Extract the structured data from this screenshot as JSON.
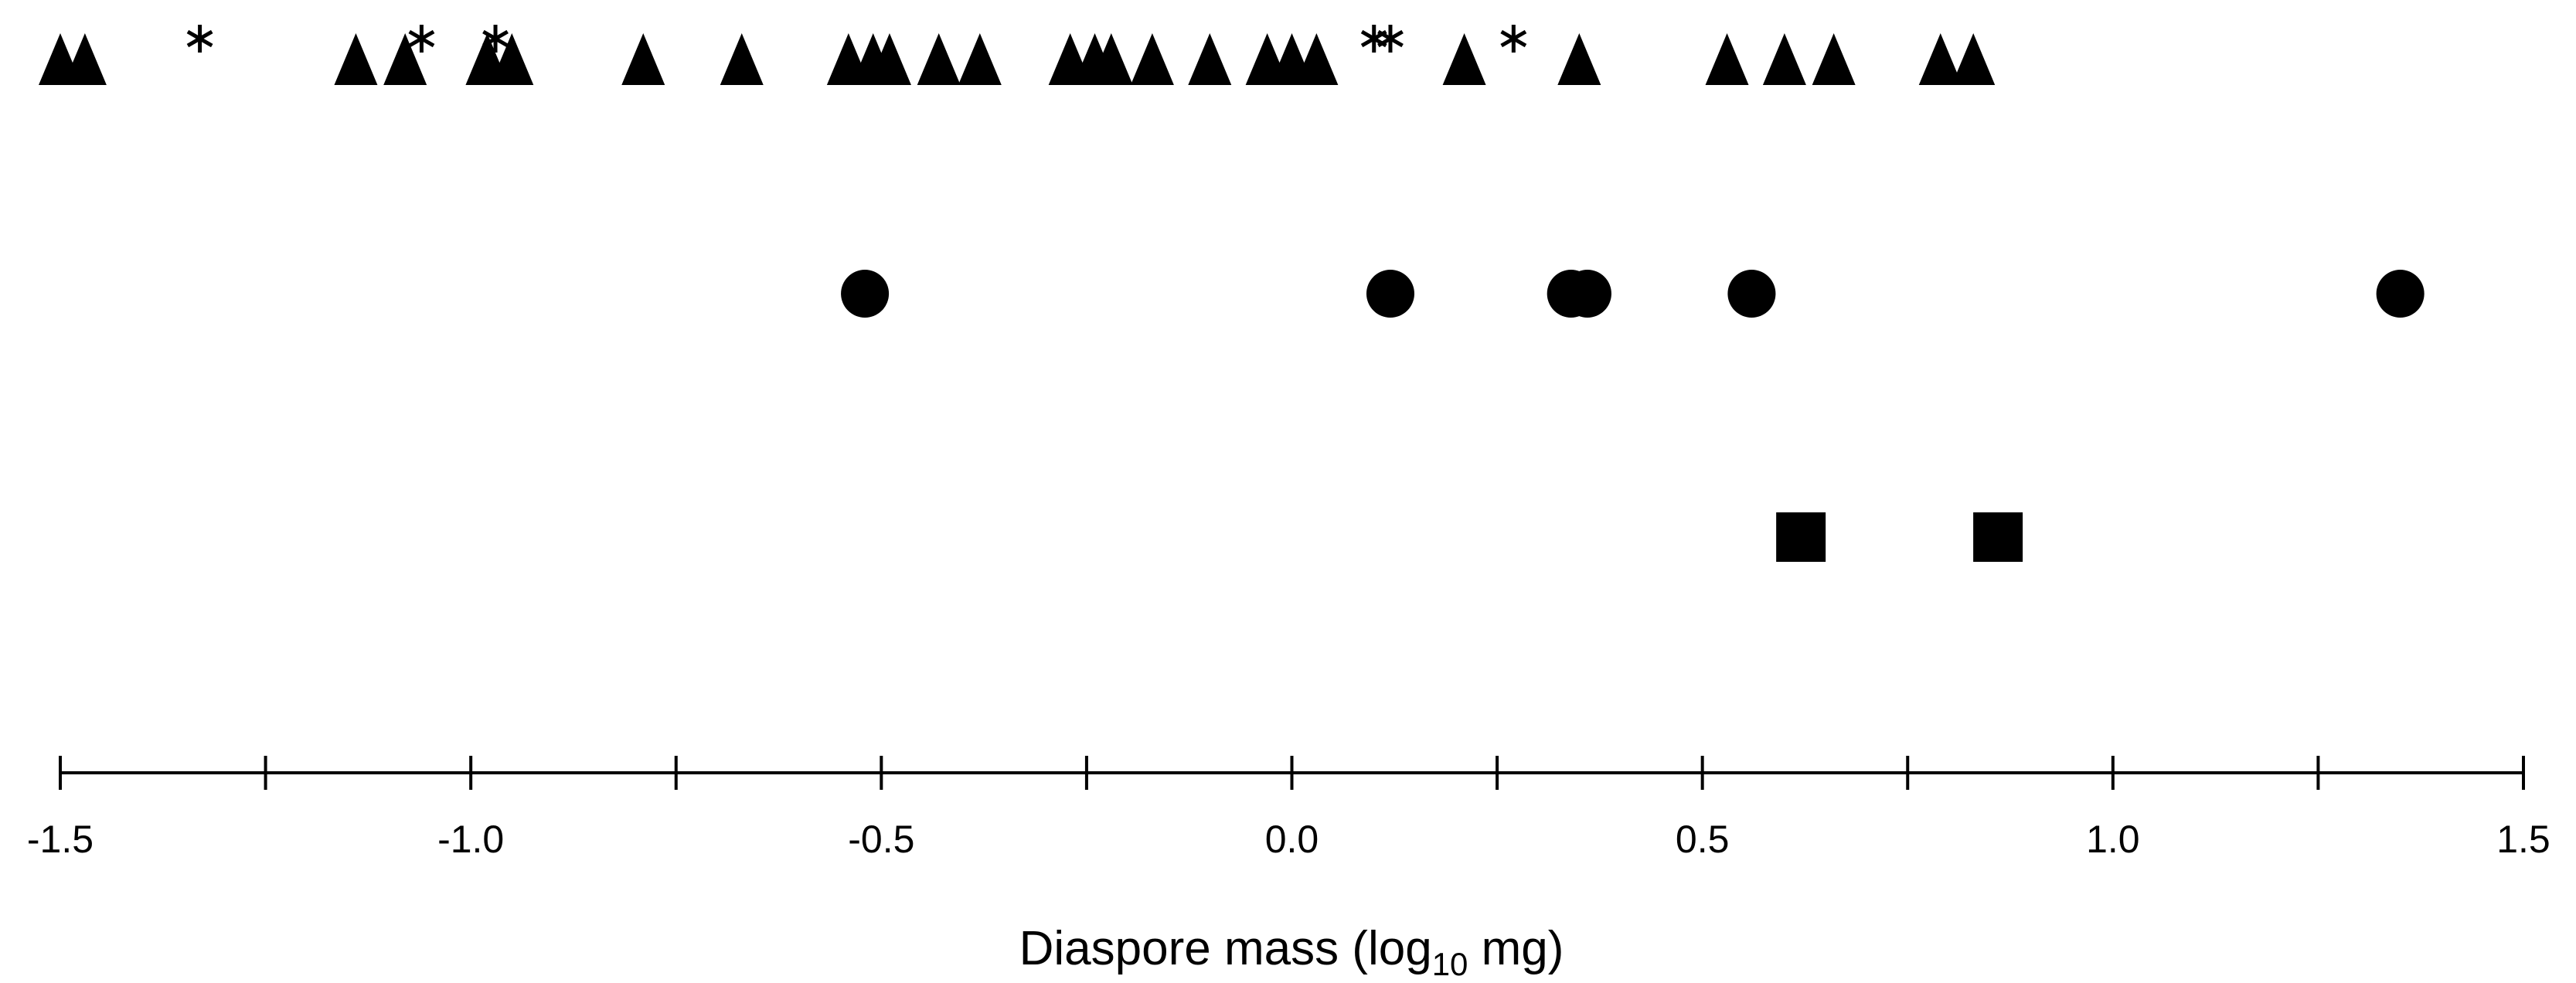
{
  "chart_data": {
    "type": "scatter",
    "xlabel_main": "Diaspore mass (log",
    "xlabel_sub": "10",
    "xlabel_end": " mg)",
    "xlim": [
      -1.5,
      1.5
    ],
    "xticks": [
      {
        "value": -1.5,
        "label": "-1.5"
      },
      {
        "value": -1.0,
        "label": "-1.0"
      },
      {
        "value": -0.5,
        "label": "-0.5"
      },
      {
        "value": 0.0,
        "label": "0.0"
      },
      {
        "value": 0.5,
        "label": "0.5"
      },
      {
        "value": 1.0,
        "label": "1.0"
      },
      {
        "value": 1.5,
        "label": "1.5"
      }
    ],
    "minor_ticks": [
      -1.25,
      -0.75,
      -0.25,
      0.25,
      0.75,
      1.25
    ],
    "grid": false,
    "legend": "none",
    "series": [
      {
        "marker": "triangle",
        "row": 1,
        "x": [
          -1.5,
          -1.47,
          -1.14,
          -1.08,
          -0.98,
          -0.95,
          -0.79,
          -0.67,
          -0.54,
          -0.51,
          -0.49,
          -0.43,
          -0.38,
          -0.27,
          -0.24,
          -0.22,
          -0.17,
          -0.1,
          -0.03,
          0.0,
          0.03,
          0.21,
          0.35,
          0.53,
          0.6,
          0.66,
          0.79,
          0.83
        ]
      },
      {
        "marker": "asterisk",
        "row": 1,
        "x": [
          -1.33,
          -1.06,
          -0.97,
          0.1,
          0.12,
          0.27
        ]
      },
      {
        "marker": "circle",
        "row": 2,
        "x": [
          -0.52,
          0.12,
          0.34,
          0.36,
          0.56,
          1.35
        ]
      },
      {
        "marker": "square",
        "row": 3,
        "x": [
          0.62,
          0.86
        ]
      }
    ]
  }
}
